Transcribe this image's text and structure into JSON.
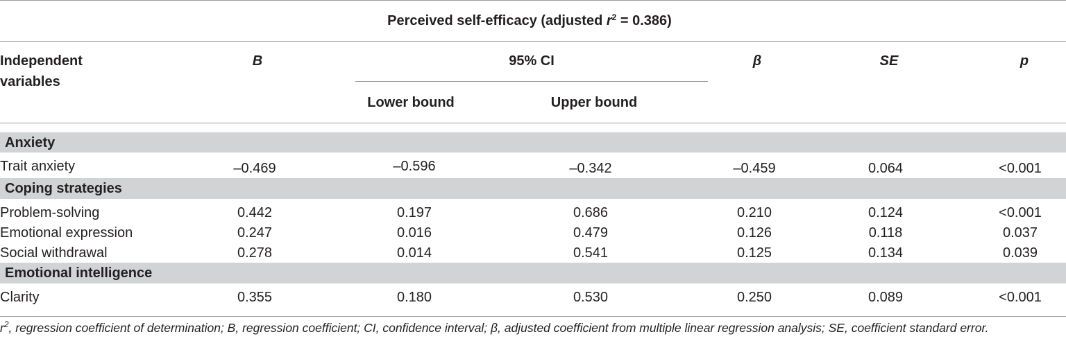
{
  "table": {
    "caption_prefix": "Perceived self-efficacy (adjusted ",
    "caption_r": "r",
    "caption_sup": "2",
    "caption_suffix": " = 0.386)",
    "headers": {
      "independent_line1": "Independent",
      "independent_line2": "variables",
      "b": "B",
      "ci": "95% CI",
      "lower": "Lower bound",
      "upper": "Upper bound",
      "beta": "β",
      "se": "SE",
      "p": "p"
    },
    "groups": [
      {
        "title": "Anxiety",
        "rows": [
          {
            "variable": "Trait anxiety",
            "b": "–0.469",
            "lower": "–0.596",
            "upper": "–0.342",
            "beta": "–0.459",
            "se": "0.064",
            "p": "<0.001"
          }
        ]
      },
      {
        "title": "Coping strategies",
        "rows": [
          {
            "variable": "Problem-solving",
            "b": "0.442",
            "lower": "0.197",
            "upper": "0.686",
            "beta": "0.210",
            "se": "0.124",
            "p": "<0.001"
          },
          {
            "variable": "Emotional expression",
            "b": "0.247",
            "lower": "0.016",
            "upper": "0.479",
            "beta": "0.126",
            "se": "0.118",
            "p": "0.037"
          },
          {
            "variable": "Social withdrawal",
            "b": "0.278",
            "lower": "0.014",
            "upper": "0.541",
            "beta": "0.125",
            "se": "0.134",
            "p": "0.039"
          }
        ]
      },
      {
        "title": "Emotional intelligence",
        "rows": [
          {
            "variable": "Clarity",
            "b": "0.355",
            "lower": "0.180",
            "upper": "0.530",
            "beta": "0.250",
            "se": "0.089",
            "p": "<0.001"
          }
        ]
      }
    ],
    "footnote": {
      "r": "r",
      "sup": "2",
      "text": ", regression coefficient of determination; B, regression coefficient; CI, confidence interval; β, adjusted coefficient from multiple linear regression analysis; SE, coefficient standard error."
    }
  }
}
